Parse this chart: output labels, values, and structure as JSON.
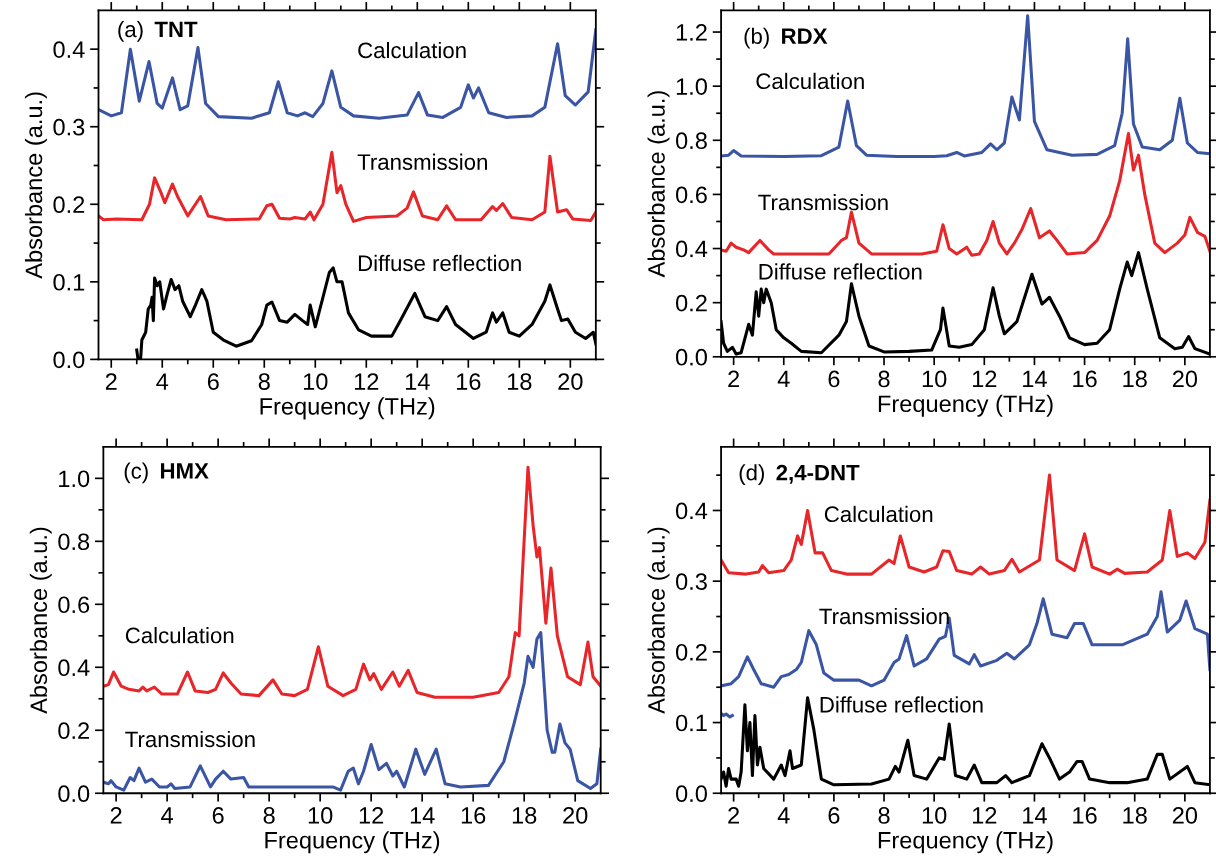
{
  "chart_data": [
    {
      "type": "line",
      "title": "(a) TNT",
      "xlabel": "Frequency (THz)",
      "ylabel": "Absorbance (a.u.)",
      "xlim": [
        1.5,
        21
      ],
      "ylim": [
        0,
        0.45
      ],
      "xticks": [
        2,
        {
          "value": 3,
          "label": null
        },
        4,
        {
          "value": 5,
          "label": null
        },
        6,
        {
          "value": 7,
          "label": null
        },
        8,
        {
          "value": 9,
          "label": null
        },
        10,
        {
          "value": 11,
          "label": null
        },
        12,
        {
          "value": 13,
          "label": null
        },
        14,
        {
          "value": 15,
          "label": null
        },
        16,
        {
          "value": 17,
          "label": null
        },
        18,
        {
          "value": 19,
          "label": null
        },
        20
      ],
      "yticks": [
        {
          "value": 0,
          "label": "0.0"
        },
        {
          "value": 0.05,
          "label": null
        },
        0.1,
        {
          "value": 0.15,
          "label": null
        },
        0.2,
        {
          "value": 0.25,
          "label": null
        },
        0.3,
        {
          "value": 0.35,
          "label": null
        },
        0.4
      ],
      "grid": false,
      "legend": false,
      "series": [
        {
          "name": "Calculation",
          "color": "#3a55a4",
          "x": [
            1.5,
            2.0,
            2.4,
            2.75,
            3.1,
            3.48,
            3.8,
            4.0,
            4.4,
            4.7,
            5.0,
            5.4,
            5.7,
            6.2,
            7.5,
            8.2,
            8.55,
            8.9,
            9.3,
            9.6,
            9.9,
            10.3,
            10.65,
            11.0,
            11.5,
            12.5,
            13.6,
            14.05,
            14.4,
            15.0,
            15.7,
            16.0,
            16.2,
            16.4,
            16.8,
            17.5,
            18.5,
            19.0,
            19.5,
            19.8,
            20.2,
            20.7,
            21.0
          ],
          "values": [
            0.322,
            0.314,
            0.318,
            0.4,
            0.333,
            0.384,
            0.33,
            0.324,
            0.363,
            0.322,
            0.327,
            0.402,
            0.33,
            0.313,
            0.311,
            0.318,
            0.358,
            0.318,
            0.314,
            0.318,
            0.313,
            0.33,
            0.372,
            0.325,
            0.314,
            0.311,
            0.315,
            0.344,
            0.315,
            0.312,
            0.325,
            0.354,
            0.337,
            0.35,
            0.318,
            0.312,
            0.314,
            0.325,
            0.407,
            0.34,
            0.328,
            0.345,
            0.425
          ]
        },
        {
          "name": "Transmission",
          "color": "#e8262a",
          "x": [
            1.5,
            1.7,
            2.2,
            3.2,
            3.5,
            3.7,
            3.95,
            4.1,
            4.4,
            4.6,
            5.0,
            5.5,
            5.8,
            6.5,
            7.8,
            8.1,
            8.3,
            8.6,
            9.0,
            9.2,
            9.6,
            9.8,
            9.95,
            10.3,
            10.65,
            10.85,
            11.0,
            11.2,
            11.5,
            12.0,
            13.2,
            13.6,
            13.85,
            14.2,
            14.8,
            15.15,
            15.5,
            16.5,
            16.95,
            17.1,
            17.35,
            17.7,
            18.5,
            19.0,
            19.2,
            19.5,
            19.85,
            20.1,
            20.8,
            21.0
          ],
          "values": [
            0.185,
            0.18,
            0.181,
            0.18,
            0.2,
            0.234,
            0.215,
            0.202,
            0.226,
            0.21,
            0.185,
            0.21,
            0.185,
            0.18,
            0.181,
            0.198,
            0.2,
            0.182,
            0.181,
            0.183,
            0.181,
            0.19,
            0.18,
            0.2,
            0.267,
            0.215,
            0.224,
            0.2,
            0.178,
            0.183,
            0.185,
            0.195,
            0.216,
            0.185,
            0.18,
            0.198,
            0.18,
            0.18,
            0.197,
            0.192,
            0.201,
            0.183,
            0.18,
            0.19,
            0.262,
            0.19,
            0.193,
            0.181,
            0.179,
            0.19
          ]
        },
        {
          "name": "Diffuse reflection",
          "color": "#000000",
          "x": [
            3.0,
            3.05,
            3.15,
            3.2,
            3.35,
            3.45,
            3.55,
            3.6,
            3.65,
            3.7,
            3.8,
            3.9,
            4.05,
            4.2,
            4.35,
            4.5,
            4.65,
            4.8,
            5.1,
            5.3,
            5.55,
            5.75,
            6.0,
            6.4,
            6.9,
            7.5,
            7.9,
            8.1,
            8.3,
            8.6,
            8.9,
            9.2,
            9.5,
            9.7,
            9.8,
            10.0,
            10.3,
            10.55,
            10.7,
            10.85,
            11.05,
            11.3,
            11.7,
            12.2,
            13.0,
            13.3,
            13.9,
            14.3,
            14.8,
            15.15,
            15.5,
            16.2,
            16.7,
            16.95,
            17.1,
            17.35,
            17.6,
            18.0,
            18.5,
            19.0,
            19.2,
            19.5,
            19.65,
            19.9,
            20.2,
            20.6,
            20.9,
            21.0
          ],
          "values": [
            0.012,
            0.0,
            0.0,
            0.025,
            0.035,
            0.065,
            0.07,
            0.08,
            0.05,
            0.105,
            0.095,
            0.1,
            0.065,
            0.085,
            0.103,
            0.09,
            0.095,
            0.075,
            0.055,
            0.07,
            0.09,
            0.075,
            0.035,
            0.025,
            0.017,
            0.024,
            0.045,
            0.07,
            0.074,
            0.05,
            0.048,
            0.058,
            0.05,
            0.045,
            0.07,
            0.042,
            0.08,
            0.112,
            0.118,
            0.1,
            0.1,
            0.06,
            0.038,
            0.03,
            0.03,
            0.048,
            0.085,
            0.055,
            0.05,
            0.068,
            0.045,
            0.027,
            0.035,
            0.06,
            0.048,
            0.06,
            0.035,
            0.03,
            0.045,
            0.075,
            0.096,
            0.065,
            0.05,
            0.052,
            0.035,
            0.027,
            0.035,
            0.02
          ]
        }
      ]
    },
    {
      "type": "line",
      "title": "(b) RDX",
      "xlabel": "Frequency (THz)",
      "ylabel": "Absorbance (a.u.)",
      "xlim": [
        1.5,
        21
      ],
      "ylim": [
        0,
        1.28
      ],
      "xticks": [
        2,
        {
          "value": 3,
          "label": null
        },
        4,
        {
          "value": 5,
          "label": null
        },
        6,
        {
          "value": 7,
          "label": null
        },
        8,
        {
          "value": 9,
          "label": null
        },
        10,
        {
          "value": 11,
          "label": null
        },
        12,
        {
          "value": 13,
          "label": null
        },
        14,
        {
          "value": 15,
          "label": null
        },
        16,
        {
          "value": 17,
          "label": null
        },
        18,
        {
          "value": 19,
          "label": null
        },
        20
      ],
      "yticks": [
        {
          "value": 0,
          "label": "0.0"
        },
        {
          "value": 0.1,
          "label": null
        },
        0.2,
        {
          "value": 0.3,
          "label": null
        },
        0.4,
        {
          "value": 0.5,
          "label": null
        },
        0.6,
        {
          "value": 0.7,
          "label": null
        },
        0.8,
        {
          "value": 0.9,
          "label": null
        },
        {
          "value": 1.0,
          "label": "1.0"
        },
        {
          "value": 1.1,
          "label": null
        },
        1.2
      ],
      "grid": false,
      "legend": false,
      "series": [
        {
          "name": "Calculation",
          "color": "#3a55a4",
          "x": [
            1.5,
            1.8,
            2.0,
            2.3,
            4.0,
            5.5,
            6.2,
            6.55,
            6.9,
            7.3,
            8.5,
            10.0,
            10.5,
            10.9,
            11.2,
            11.9,
            12.25,
            12.5,
            12.8,
            13.1,
            13.4,
            13.73,
            14.0,
            14.5,
            15.5,
            16.5,
            17.2,
            17.5,
            17.72,
            17.95,
            18.3,
            19.0,
            19.5,
            19.8,
            20.1,
            20.5,
            21.0
          ],
          "values": [
            0.742,
            0.745,
            0.762,
            0.742,
            0.74,
            0.743,
            0.775,
            0.945,
            0.78,
            0.745,
            0.74,
            0.74,
            0.743,
            0.755,
            0.742,
            0.755,
            0.787,
            0.765,
            0.79,
            0.96,
            0.875,
            1.26,
            0.87,
            0.765,
            0.745,
            0.748,
            0.78,
            0.9,
            1.175,
            0.86,
            0.775,
            0.765,
            0.8,
            0.955,
            0.79,
            0.755,
            0.75
          ]
        },
        {
          "name": "Transmission",
          "color": "#e8262a",
          "x": [
            1.5,
            1.7,
            1.9,
            2.1,
            2.4,
            2.6,
            3.05,
            3.4,
            3.6,
            5.0,
            5.8,
            6.3,
            6.5,
            6.7,
            7.0,
            7.5,
            9.5,
            10.1,
            10.35,
            10.6,
            10.9,
            11.3,
            11.5,
            11.8,
            12.1,
            12.35,
            12.6,
            12.9,
            13.2,
            13.5,
            13.85,
            14.2,
            14.6,
            14.9,
            15.3,
            16.0,
            16.5,
            17.0,
            17.4,
            17.75,
            17.95,
            18.15,
            18.4,
            18.8,
            19.2,
            19.7,
            20.0,
            20.2,
            20.5,
            20.8,
            21.0
          ],
          "values": [
            0.395,
            0.39,
            0.42,
            0.405,
            0.395,
            0.385,
            0.43,
            0.395,
            0.38,
            0.38,
            0.38,
            0.43,
            0.44,
            0.535,
            0.42,
            0.38,
            0.38,
            0.39,
            0.488,
            0.4,
            0.38,
            0.405,
            0.375,
            0.38,
            0.43,
            0.5,
            0.42,
            0.38,
            0.42,
            0.47,
            0.548,
            0.44,
            0.465,
            0.43,
            0.38,
            0.385,
            0.43,
            0.52,
            0.65,
            0.825,
            0.69,
            0.745,
            0.6,
            0.42,
            0.385,
            0.42,
            0.45,
            0.515,
            0.46,
            0.445,
            0.39
          ]
        },
        {
          "name": "Diffuse reflection",
          "color": "#000000",
          "x": [
            1.5,
            1.6,
            1.75,
            1.95,
            2.1,
            2.3,
            2.6,
            2.75,
            2.9,
            3.0,
            3.1,
            3.2,
            3.3,
            3.5,
            3.7,
            4.0,
            4.3,
            4.7,
            5.5,
            6.2,
            6.5,
            6.7,
            7.0,
            7.4,
            8.0,
            9.0,
            9.9,
            10.25,
            10.35,
            10.6,
            11.0,
            11.5,
            12.0,
            12.35,
            12.6,
            12.8,
            13.3,
            13.9,
            14.3,
            14.6,
            15.0,
            15.4,
            16.0,
            16.5,
            17.0,
            17.4,
            17.7,
            17.88,
            18.15,
            18.5,
            19.0,
            19.6,
            19.9,
            20.15,
            20.4,
            21.0
          ],
          "values": [
            0.13,
            0.05,
            0.02,
            0.035,
            0.01,
            0.015,
            0.12,
            0.08,
            0.24,
            0.15,
            0.25,
            0.2,
            0.25,
            0.2,
            0.1,
            0.07,
            0.05,
            0.02,
            0.015,
            0.08,
            0.13,
            0.27,
            0.15,
            0.04,
            0.018,
            0.02,
            0.025,
            0.1,
            0.18,
            0.04,
            0.035,
            0.045,
            0.1,
            0.255,
            0.15,
            0.085,
            0.13,
            0.305,
            0.195,
            0.22,
            0.15,
            0.07,
            0.045,
            0.05,
            0.1,
            0.25,
            0.35,
            0.3,
            0.385,
            0.25,
            0.07,
            0.03,
            0.035,
            0.075,
            0.03,
            0.01
          ]
        }
      ]
    },
    {
      "type": "line",
      "title": "(c) HMX",
      "xlabel": "Frequency (THz)",
      "ylabel": "Absorbance (a.u.)",
      "xlim": [
        1.5,
        21
      ],
      "ylim": [
        0,
        1.1
      ],
      "xticks": [
        2,
        {
          "value": 3,
          "label": null
        },
        4,
        {
          "value": 5,
          "label": null
        },
        6,
        {
          "value": 7,
          "label": null
        },
        8,
        {
          "value": 9,
          "label": null
        },
        10,
        {
          "value": 11,
          "label": null
        },
        12,
        {
          "value": 13,
          "label": null
        },
        14,
        {
          "value": 15,
          "label": null
        },
        16,
        {
          "value": 17,
          "label": null
        },
        18,
        {
          "value": 19,
          "label": null
        },
        20
      ],
      "yticks": [
        {
          "value": 0,
          "label": "0.0"
        },
        {
          "value": 0.1,
          "label": null
        },
        0.2,
        {
          "value": 0.3,
          "label": null
        },
        0.4,
        {
          "value": 0.5,
          "label": null
        },
        0.6,
        {
          "value": 0.7,
          "label": null
        },
        0.8,
        {
          "value": 0.9,
          "label": null
        },
        {
          "value": 1.0,
          "label": "1.0"
        }
      ],
      "grid": false,
      "legend": false,
      "series": [
        {
          "name": "Calculation",
          "color": "#e8262a",
          "x": [
            1.5,
            1.7,
            1.9,
            2.2,
            2.5,
            2.9,
            3.05,
            3.2,
            3.5,
            3.8,
            4.4,
            4.8,
            5.1,
            5.6,
            5.9,
            6.2,
            6.5,
            6.9,
            7.6,
            8.15,
            8.5,
            9.0,
            9.5,
            9.93,
            10.3,
            10.9,
            11.4,
            11.7,
            11.95,
            12.1,
            12.4,
            12.85,
            13.1,
            13.45,
            13.8,
            14.5,
            16.0,
            17.0,
            17.4,
            17.65,
            17.8,
            18.15,
            18.35,
            18.5,
            18.6,
            18.85,
            19.05,
            19.3,
            19.7,
            20.2,
            20.5,
            20.7,
            21.0
          ],
          "values": [
            0.34,
            0.345,
            0.385,
            0.34,
            0.33,
            0.325,
            0.337,
            0.325,
            0.337,
            0.315,
            0.315,
            0.385,
            0.325,
            0.32,
            0.33,
            0.382,
            0.35,
            0.315,
            0.31,
            0.36,
            0.315,
            0.31,
            0.33,
            0.465,
            0.34,
            0.31,
            0.33,
            0.41,
            0.36,
            0.38,
            0.33,
            0.385,
            0.34,
            0.39,
            0.32,
            0.305,
            0.305,
            0.32,
            0.37,
            0.51,
            0.5,
            1.035,
            0.85,
            0.75,
            0.78,
            0.54,
            0.715,
            0.5,
            0.37,
            0.345,
            0.48,
            0.37,
            0.34
          ]
        },
        {
          "name": "Transmission",
          "color": "#3a55a4",
          "x": [
            1.5,
            1.7,
            1.8,
            2.0,
            2.3,
            2.55,
            2.7,
            2.9,
            3.15,
            3.4,
            3.7,
            4.0,
            4.15,
            4.3,
            4.9,
            5.3,
            5.7,
            5.9,
            6.2,
            6.5,
            7.0,
            7.2,
            8.0,
            10.5,
            10.8,
            11.1,
            11.3,
            11.5,
            11.7,
            12.0,
            12.3,
            12.6,
            12.85,
            13.0,
            13.3,
            13.75,
            14.1,
            14.55,
            14.9,
            15.5,
            16.6,
            17.2,
            17.6,
            18.0,
            18.15,
            18.35,
            18.5,
            18.65,
            18.9,
            19.1,
            19.2,
            19.4,
            19.6,
            19.8,
            20.1,
            20.6,
            20.85,
            21.0
          ],
          "values": [
            0.035,
            0.03,
            0.04,
            0.02,
            0.01,
            0.05,
            0.04,
            0.08,
            0.035,
            0.045,
            0.02,
            0.02,
            0.03,
            0.015,
            0.02,
            0.087,
            0.02,
            0.045,
            0.07,
            0.045,
            0.05,
            0.02,
            0.02,
            0.02,
            0.01,
            0.07,
            0.08,
            0.03,
            0.07,
            0.155,
            0.075,
            0.095,
            0.055,
            0.07,
            0.02,
            0.14,
            0.06,
            0.14,
            0.03,
            0.02,
            0.025,
            0.1,
            0.22,
            0.35,
            0.435,
            0.4,
            0.49,
            0.51,
            0.2,
            0.13,
            0.13,
            0.22,
            0.16,
            0.14,
            0.04,
            0.015,
            0.03,
            0.14
          ]
        }
      ]
    },
    {
      "type": "line",
      "title": "(d) 2,4-DNT",
      "xlabel": "Frequency (THz)",
      "ylabel": "Absorbance (a.u.)",
      "xlim": [
        1.5,
        21
      ],
      "ylim": [
        0,
        0.49
      ],
      "xticks": [
        2,
        {
          "value": 3,
          "label": null
        },
        4,
        {
          "value": 5,
          "label": null
        },
        6,
        {
          "value": 7,
          "label": null
        },
        8,
        {
          "value": 9,
          "label": null
        },
        10,
        {
          "value": 11,
          "label": null
        },
        12,
        {
          "value": 13,
          "label": null
        },
        14,
        {
          "value": 15,
          "label": null
        },
        16,
        {
          "value": 17,
          "label": null
        },
        18,
        {
          "value": 19,
          "label": null
        },
        20
      ],
      "yticks": [
        {
          "value": 0,
          "label": "0.0"
        },
        {
          "value": 0.05,
          "label": null
        },
        0.1,
        {
          "value": 0.15,
          "label": null
        },
        0.2,
        {
          "value": 0.25,
          "label": null
        },
        0.3,
        {
          "value": 0.35,
          "label": null
        },
        0.4,
        {
          "value": 0.45,
          "label": null
        }
      ],
      "grid": false,
      "legend": false,
      "series": [
        {
          "name": "Calculation",
          "color": "#e8262a",
          "x": [
            1.5,
            1.8,
            2.5,
            3.0,
            3.15,
            3.4,
            4.0,
            4.3,
            4.55,
            4.7,
            4.95,
            5.25,
            5.55,
            5.9,
            6.5,
            7.5,
            8.2,
            8.4,
            8.65,
            9.0,
            9.6,
            10.1,
            10.35,
            10.6,
            10.9,
            11.5,
            11.85,
            12.2,
            12.8,
            13.1,
            13.4,
            14.2,
            14.6,
            14.9,
            15.6,
            16.0,
            16.3,
            17.0,
            17.3,
            17.6,
            18.5,
            19.1,
            19.4,
            19.7,
            20.1,
            20.4,
            20.8,
            21.0
          ],
          "values": [
            0.33,
            0.312,
            0.31,
            0.313,
            0.322,
            0.312,
            0.315,
            0.33,
            0.364,
            0.352,
            0.4,
            0.34,
            0.34,
            0.315,
            0.31,
            0.31,
            0.33,
            0.325,
            0.364,
            0.32,
            0.313,
            0.32,
            0.343,
            0.342,
            0.315,
            0.31,
            0.32,
            0.31,
            0.315,
            0.331,
            0.313,
            0.33,
            0.45,
            0.33,
            0.315,
            0.367,
            0.32,
            0.31,
            0.317,
            0.311,
            0.313,
            0.33,
            0.4,
            0.335,
            0.34,
            0.332,
            0.355,
            0.415
          ]
        },
        {
          "name": "Transmission",
          "color": "#3a55a4",
          "x": [
            1.5,
            1.9,
            2.2,
            2.55,
            2.8,
            3.1,
            3.6,
            3.9,
            4.2,
            4.5,
            4.7,
            5.0,
            5.3,
            5.6,
            6.0,
            7.0,
            7.5,
            8.0,
            8.4,
            8.6,
            8.9,
            9.2,
            9.7,
            10.2,
            10.45,
            10.6,
            10.8,
            11.4,
            11.6,
            11.85,
            12.5,
            12.9,
            13.2,
            13.8,
            14.1,
            14.35,
            14.7,
            15.3,
            15.6,
            15.95,
            16.3,
            17.0,
            17.5,
            18.5,
            18.9,
            19.05,
            19.3,
            19.8,
            20.05,
            20.4,
            20.9,
            21.0
          ],
          "values": [
            0.152,
            0.155,
            0.165,
            0.193,
            0.175,
            0.155,
            0.15,
            0.165,
            0.168,
            0.175,
            0.185,
            0.23,
            0.21,
            0.17,
            0.16,
            0.16,
            0.152,
            0.16,
            0.185,
            0.19,
            0.223,
            0.18,
            0.19,
            0.218,
            0.222,
            0.248,
            0.195,
            0.183,
            0.196,
            0.18,
            0.188,
            0.198,
            0.19,
            0.21,
            0.24,
            0.275,
            0.225,
            0.22,
            0.24,
            0.24,
            0.21,
            0.21,
            0.21,
            0.225,
            0.25,
            0.285,
            0.228,
            0.245,
            0.272,
            0.233,
            0.225,
            0.175
          ]
        },
        {
          "name": "Diffuse reflection",
          "color": "#000000",
          "x": [
            1.5,
            1.6,
            1.7,
            1.8,
            1.9,
            2.1,
            2.2,
            2.3,
            2.45,
            2.55,
            2.65,
            2.75,
            2.85,
            2.95,
            3.05,
            3.2,
            3.6,
            3.9,
            4.05,
            4.25,
            4.35,
            4.7,
            4.95,
            5.2,
            5.5,
            6.0,
            7.5,
            8.2,
            8.45,
            8.6,
            8.95,
            9.2,
            9.7,
            10.2,
            10.4,
            10.6,
            10.85,
            11.3,
            11.6,
            11.9,
            12.5,
            12.85,
            13.1,
            13.8,
            14.3,
            14.6,
            15.0,
            15.4,
            15.7,
            15.9,
            16.2,
            17.0,
            17.7,
            18.5,
            18.9,
            19.1,
            19.4,
            20.1,
            20.4,
            21.0
          ],
          "values": [
            0.02,
            0.03,
            0.01,
            0.035,
            0.02,
            0.02,
            0.01,
            0.03,
            0.125,
            0.06,
            0.1,
            0.025,
            0.11,
            0.04,
            0.065,
            0.035,
            0.02,
            0.04,
            0.025,
            0.06,
            0.035,
            0.04,
            0.135,
            0.09,
            0.02,
            0.012,
            0.013,
            0.02,
            0.038,
            0.03,
            0.075,
            0.025,
            0.02,
            0.05,
            0.048,
            0.098,
            0.025,
            0.02,
            0.04,
            0.015,
            0.015,
            0.025,
            0.015,
            0.025,
            0.07,
            0.05,
            0.02,
            0.03,
            0.045,
            0.045,
            0.02,
            0.015,
            0.015,
            0.02,
            0.055,
            0.055,
            0.02,
            0.038,
            0.015,
            0.012
          ]
        },
        {
          "color": "#3a55a4",
          "x": [
            1.5,
            1.6,
            1.7,
            1.85,
            1.95
          ],
          "values": [
            0.113,
            0.11,
            0.112,
            0.108,
            0.11
          ]
        }
      ]
    }
  ]
}
